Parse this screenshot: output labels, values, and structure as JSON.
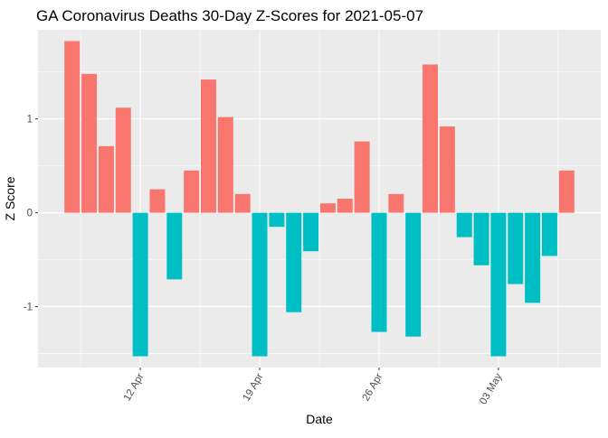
{
  "chart_data": {
    "type": "bar",
    "title": "GA Coronavirus Deaths 30-Day Z-Scores for 2021-05-07",
    "xlabel": "Date",
    "ylabel": "Z Score",
    "x_axis": "date",
    "x_ticks": [
      {
        "date": "2021-04-12",
        "label": "12 Apr"
      },
      {
        "date": "2021-04-19",
        "label": "19 Apr"
      },
      {
        "date": "2021-04-26",
        "label": "26 Apr"
      },
      {
        "date": "2021-05-03",
        "label": "03 May"
      }
    ],
    "y_ticks": [
      -1,
      0,
      1
    ],
    "ylim": [
      -1.65,
      1.95
    ],
    "xlim": [
      "2021-04-06",
      "2021-05-09"
    ],
    "grid": true,
    "legend": "none",
    "colors": {
      "positive": "#F8766D",
      "negative": "#00BFC4",
      "panel": "#EBEBEB",
      "grid": "#FFFFFF"
    },
    "dates": [
      "2021-04-08",
      "2021-04-09",
      "2021-04-10",
      "2021-04-11",
      "2021-04-12",
      "2021-04-13",
      "2021-04-14",
      "2021-04-15",
      "2021-04-16",
      "2021-04-17",
      "2021-04-18",
      "2021-04-19",
      "2021-04-20",
      "2021-04-21",
      "2021-04-22",
      "2021-04-23",
      "2021-04-24",
      "2021-04-25",
      "2021-04-26",
      "2021-04-27",
      "2021-04-28",
      "2021-04-29",
      "2021-04-30",
      "2021-05-01",
      "2021-05-02",
      "2021-05-03",
      "2021-05-04",
      "2021-05-05",
      "2021-05-06",
      "2021-05-07"
    ],
    "values": [
      1.83,
      1.48,
      0.71,
      1.12,
      -1.53,
      0.25,
      -0.71,
      0.45,
      1.42,
      1.02,
      0.2,
      -1.53,
      -0.15,
      -1.06,
      -0.41,
      0.1,
      0.15,
      0.76,
      -1.27,
      0.2,
      -1.32,
      1.58,
      0.92,
      -0.26,
      -0.56,
      -1.53,
      -0.76,
      -0.96,
      -0.46,
      0.45
    ]
  }
}
